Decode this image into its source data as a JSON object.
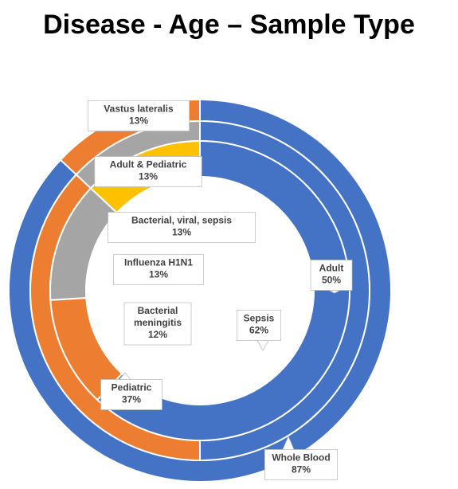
{
  "chart_data": {
    "type": "sunburst",
    "title": "Disease - Age – Sample Type",
    "rings": [
      {
        "name": "Disease",
        "slices": [
          {
            "label": "Sepsis",
            "value": 62,
            "display": "62%",
            "color": "#4472C4"
          },
          {
            "label": "Bacterial meningitis",
            "label_lines": [
              "Bacterial",
              "meningitis"
            ],
            "value": 12,
            "display": "12%",
            "color": "#ED7D31"
          },
          {
            "label": "Influenza H1N1",
            "value": 13,
            "display": "13%",
            "color": "#A5A5A5"
          },
          {
            "label": "Bacterial, viral, sepsis",
            "value": 13,
            "display": "13%",
            "color": "#FFC000"
          }
        ]
      },
      {
        "name": "Age",
        "slices": [
          {
            "label": "Adult",
            "value": 50,
            "display": "50%",
            "color": "#4472C4"
          },
          {
            "label": "Pediatric",
            "value": 37,
            "display": "37%",
            "color": "#ED7D31"
          },
          {
            "label": "Adult & Pediatric",
            "value": 13,
            "display": "13%",
            "color": "#A5A5A5"
          }
        ]
      },
      {
        "name": "Sample Type",
        "slices": [
          {
            "label": "Whole Blood",
            "value": 87,
            "display": "87%",
            "color": "#4472C4"
          },
          {
            "label": "Vastus lateralis",
            "value": 13,
            "display": "13%",
            "color": "#ED7D31"
          }
        ]
      }
    ],
    "start_angle_deg": 0,
    "direction": "clockwise",
    "legend": "none"
  }
}
